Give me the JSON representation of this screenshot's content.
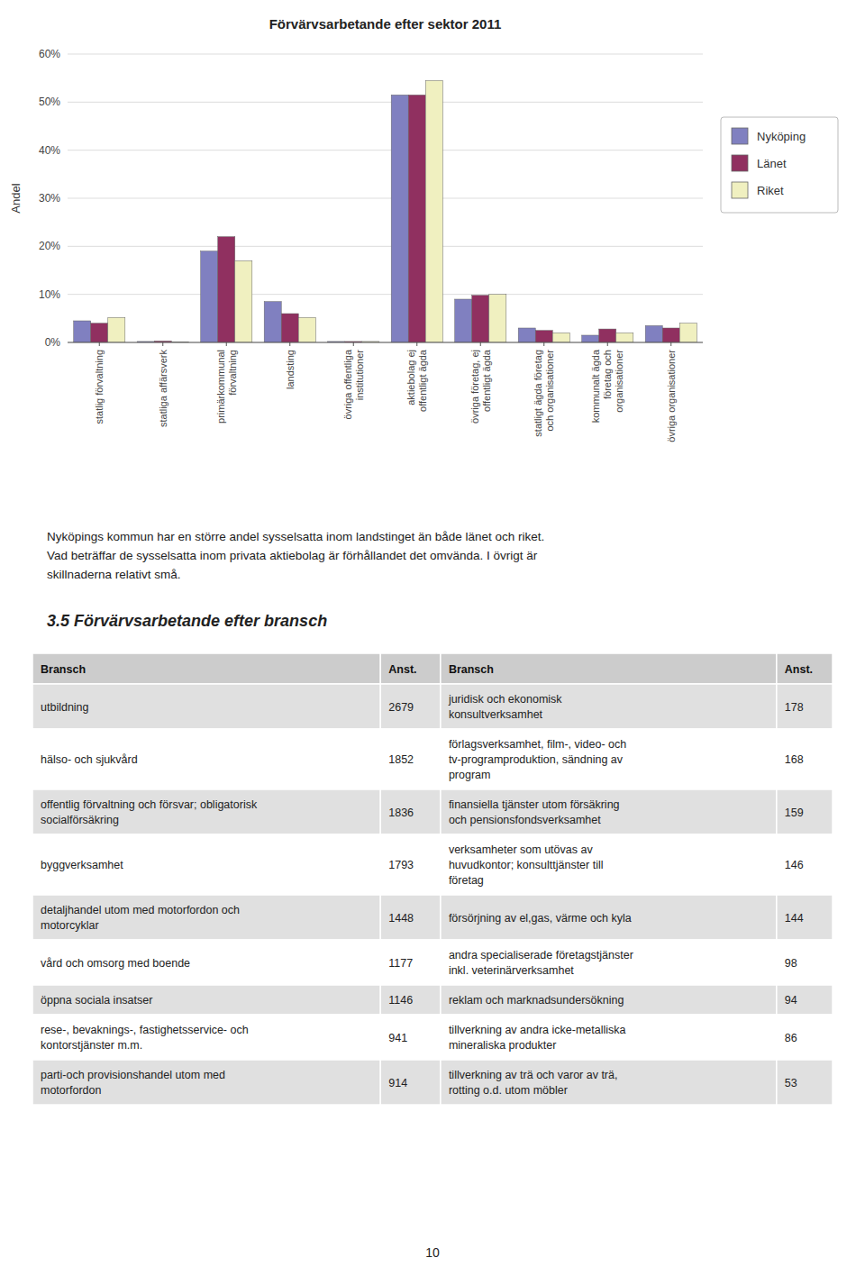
{
  "chart_data": {
    "type": "bar",
    "title": "Förvärvsarbetande efter sektor 2011",
    "ylabel": "Andel",
    "categories": [
      "statlig förvaltning",
      "statliga affärsverk",
      "primärkommunal\nförvaltning",
      "landsting",
      "övriga offentliga\ninstitutioner",
      "aktiebolag ej\noffentligt ägda",
      "övriga företag, ej\noffentligt ägda",
      "statligt ägda företag\noch organisationer",
      "kommunalt ägda\nföretag och\norganisationer",
      "övriga organisationer"
    ],
    "series": [
      {
        "name": "Nyköping",
        "color": "#8080C0",
        "values": [
          4.5,
          0.2,
          19.0,
          8.5,
          0.2,
          51.5,
          9.0,
          3.0,
          1.5,
          3.5
        ]
      },
      {
        "name": "Länet",
        "color": "#903060",
        "values": [
          4.0,
          0.3,
          22.0,
          6.0,
          0.2,
          51.5,
          9.8,
          2.5,
          2.8,
          3.0
        ]
      },
      {
        "name": "Riket",
        "color": "#F0F0C0",
        "values": [
          5.2,
          0.1,
          17.0,
          5.2,
          0.2,
          54.5,
          10.0,
          2.0,
          2.0,
          4.0
        ]
      }
    ],
    "ylim": [
      0,
      60
    ],
    "yticks": [
      {
        "value": 0,
        "label": "0%"
      },
      {
        "value": 10,
        "label": "10%"
      },
      {
        "value": 20,
        "label": "20%"
      },
      {
        "value": 30,
        "label": "30%"
      },
      {
        "value": 40,
        "label": "40%"
      },
      {
        "value": 50,
        "label": "50%"
      },
      {
        "value": 60,
        "label": "60%"
      }
    ],
    "grid": true,
    "legend": "right"
  },
  "body_text": [
    "Nyköpings kommun har en större andel sysselsatta inom landstinget än både länet och riket.",
    "Vad beträffar de sysselsatta inom privata aktiebolag är förhållandet det omvända. I övrigt är",
    "skillnaderna relativt små."
  ],
  "section_title": "3.5 Förvärvsarbetande efter bransch",
  "table": {
    "headers": [
      "Bransch",
      "Anst.",
      "Bransch",
      "Anst."
    ],
    "rows": [
      [
        "utbildning",
        2679,
        "juridisk och ekonomisk\nkonsultverksamhet",
        178
      ],
      [
        "hälso- och sjukvård",
        1852,
        "förlagsverksamhet, film-, video- och\ntv-programproduktion, sändning av\nprogram",
        168
      ],
      [
        "offentlig förvaltning och försvar; obligatorisk\nsocialförsäkring",
        1836,
        "finansiella tjänster utom försäkring\noch pensionsfondsverksamhet",
        159
      ],
      [
        "byggverksamhet",
        1793,
        "verksamheter som utövas av\nhuvudkontor; konsulttjänster till\nföretag",
        146
      ],
      [
        "detaljhandel utom med motorfordon och\nmotorcyklar",
        1448,
        "försörjning av el,gas, värme och kyla",
        144
      ],
      [
        "vård och omsorg med boende",
        1177,
        "andra specialiserade företagstjänster\ninkl. veterinärverksamhet",
        98
      ],
      [
        "öppna sociala insatser",
        1146,
        "reklam och marknadsundersökning",
        94
      ],
      [
        "rese-, bevaknings-, fastighetsservice- och\nkontorstjänster m.m.",
        941,
        "tillverkning av andra icke-metalliska\nmineraliska produkter",
        86
      ],
      [
        "parti-och provisionshandel utom med\nmotorfordon",
        914,
        "tillverkning av trä och varor av trä,\nrotting o.d. utom möbler",
        53
      ]
    ]
  },
  "page_number": "10"
}
